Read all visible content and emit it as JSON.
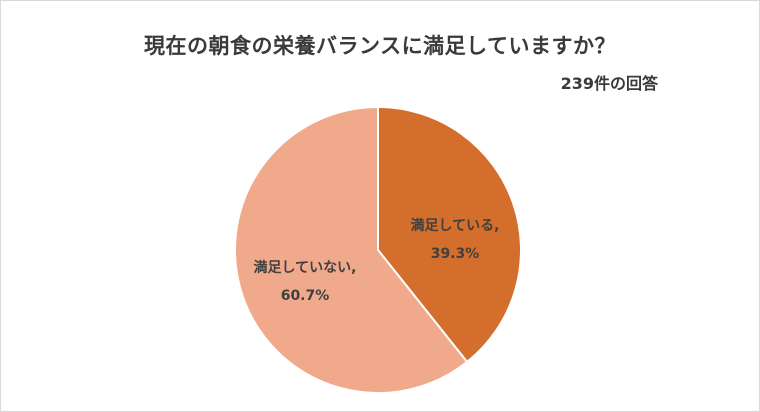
{
  "chart_data": {
    "type": "pie",
    "title": "現在の朝食の栄養バランスに満足していますか？",
    "subtitle": "239件の回答",
    "slices": [
      {
        "label": "満足している",
        "value": 39.3,
        "display": "39.3%",
        "color": "#d46e2c"
      },
      {
        "label": "満足していない",
        "value": 60.7,
        "display": "60.7%",
        "color": "#f0a98a"
      }
    ],
    "legend": "none",
    "start_angle": "12 o'clock",
    "direction": "clockwise"
  }
}
